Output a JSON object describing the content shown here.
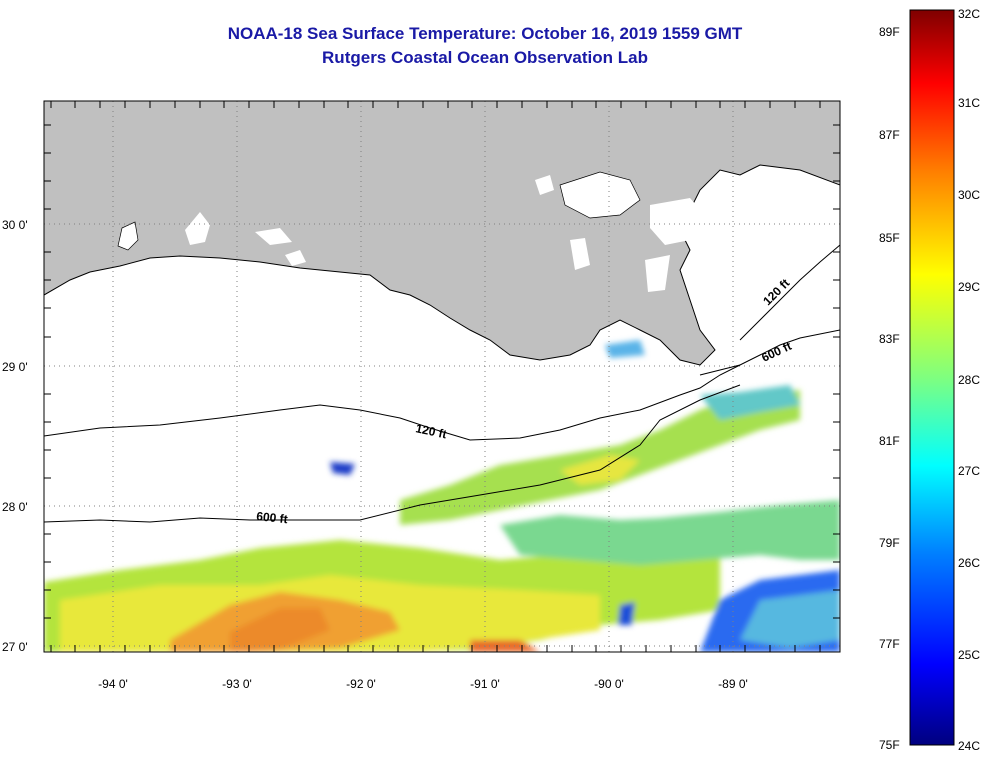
{
  "header": {
    "title": "NOAA-18 Sea Surface Temperature:  October 16, 2019 1559 GMT",
    "subtitle": "Rutgers Coastal Ocean Observation Lab"
  },
  "map": {
    "latitude_labels": [
      "30 0'",
      "29 0'",
      "28 0'",
      "27 0'"
    ],
    "longitude_labels": [
      "-94 0'",
      "-93 0'",
      "-92 0'",
      "-91 0'",
      "-90 0'",
      "-89 0'"
    ],
    "contour_labels": [
      "120 ft",
      "600 ft",
      "120 ft",
      "600 ft"
    ],
    "land_color": "#c0c0c0",
    "no_data_color": "#ffffff"
  },
  "colorbar": {
    "fahrenheit_labels": [
      "89F",
      "87F",
      "85F",
      "83F",
      "81F",
      "79F",
      "77F",
      "75F"
    ],
    "celsius_labels": [
      "32C",
      "31C",
      "30C",
      "29C",
      "28C",
      "27C",
      "26C",
      "25C",
      "24C"
    ],
    "colors": [
      "#00007f",
      "#0000ff",
      "#007fff",
      "#00ffff",
      "#7fff7f",
      "#ffff00",
      "#ff7f00",
      "#ff0000",
      "#7f0000"
    ]
  }
}
